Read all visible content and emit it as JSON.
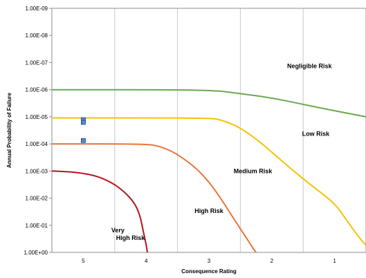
{
  "chart_data": {
    "type": "line",
    "xlabel": "Consequence Rating",
    "ylabel": "Annual Probability of Failure",
    "x_ticks": [
      "5",
      "4",
      "3",
      "2",
      "1"
    ],
    "x_range": [
      0.5,
      5.5
    ],
    "x_reversed": true,
    "y_scale": "log",
    "y_range": [
      1e-09,
      1
    ],
    "y_reversed": true,
    "y_ticks": [
      "1.00E-09",
      "1.00E-08",
      "1.00E-07",
      "1.00E-06",
      "1.00E-05",
      "1.00E-04",
      "1.00E-03",
      "1.00E-02",
      "1.00E-01",
      "1.00E+00"
    ],
    "grid": "vertical",
    "series": [
      {
        "color": "#6aa84f",
        "points": [
          [
            5.5,
            1e-06
          ],
          [
            3.0,
            1e-06
          ],
          [
            2.5,
            1.4e-06
          ],
          [
            2.0,
            2e-06
          ],
          [
            1.5,
            3.5e-06
          ],
          [
            1.0,
            6e-06
          ],
          [
            0.5,
            1e-05
          ]
        ]
      },
      {
        "color": "#f6c200",
        "points": [
          [
            5.5,
            1.1e-05
          ],
          [
            3.0,
            1.1e-05
          ],
          [
            2.8,
            1.3e-05
          ],
          [
            2.5,
            2.5e-05
          ],
          [
            2.2,
            8e-05
          ],
          [
            2.0,
            0.0002
          ],
          [
            1.7,
            0.0008
          ],
          [
            1.4,
            0.003
          ],
          [
            1.0,
            0.015
          ],
          [
            0.8,
            0.07
          ],
          [
            0.6,
            0.3
          ],
          [
            0.5,
            0.55
          ]
        ]
      },
      {
        "color": "#e8733a",
        "points": [
          [
            5.5,
            0.0001
          ],
          [
            4.0,
            0.0001
          ],
          [
            3.8,
            0.00012
          ],
          [
            3.6,
            0.00018
          ],
          [
            3.4,
            0.00035
          ],
          [
            3.2,
            0.0008
          ],
          [
            3.0,
            0.0025
          ],
          [
            2.8,
            0.011
          ],
          [
            2.6,
            0.06
          ],
          [
            2.4,
            0.3
          ],
          [
            2.3,
            0.7
          ],
          [
            2.25,
            1.0
          ]
        ]
      },
      {
        "color": "#b5121b",
        "points": [
          [
            5.5,
            0.001
          ],
          [
            5.1,
            0.0011
          ],
          [
            4.8,
            0.0015
          ],
          [
            4.6,
            0.0023
          ],
          [
            4.4,
            0.0045
          ],
          [
            4.2,
            0.013
          ],
          [
            4.1,
            0.04
          ],
          [
            4.05,
            0.15
          ],
          [
            4.0,
            0.5
          ],
          [
            3.98,
            1.0
          ]
        ]
      }
    ],
    "markers": [
      {
        "x": 5,
        "y": 1.3e-05,
        "color": "#4a90d9"
      },
      {
        "x": 5,
        "y": 1.6e-05,
        "color": "#4a90d9"
      },
      {
        "x": 5,
        "y": 7.5e-05,
        "color": "#4a90d9"
      }
    ],
    "annotations": [
      {
        "text": "Negligible Risk",
        "x": 1.4,
        "y": 1.6e-07
      },
      {
        "text": "Low Risk",
        "x": 1.3,
        "y": 5e-05
      },
      {
        "text": "Medium Risk",
        "x": 2.3,
        "y": 0.0012
      },
      {
        "text": "High Risk",
        "x": 3.0,
        "y": 0.035
      },
      {
        "text": "Very",
        "x": 4.45,
        "y": 0.18
      },
      {
        "text": "High Risk",
        "x": 4.25,
        "y": 0.35
      }
    ]
  }
}
